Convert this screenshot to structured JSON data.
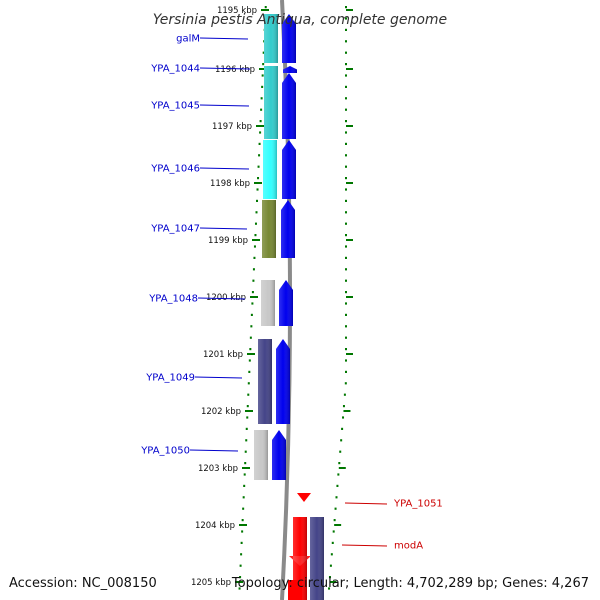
{
  "title": "Yersinia pestis Antiqua, complete genome",
  "footer": {
    "accession": "Accession: NC_008150",
    "topology": "Topology: circular; Length: 4,702,289 bp; Genes: 4,267"
  },
  "colors": {
    "label_blue": "#0000cc",
    "label_red": "#cc0000",
    "tick_green": "#007700",
    "backbone": "#888888"
  },
  "ruler": {
    "unit": "kbp",
    "ticks": [
      {
        "kbp": 1195,
        "label": "1195 kbp"
      },
      {
        "kbp": 1196,
        "label": "1196 kbp"
      },
      {
        "kbp": 1197,
        "label": "1197 kbp"
      },
      {
        "kbp": 1198,
        "label": "1198 kbp"
      },
      {
        "kbp": 1199,
        "label": "1199 kbp"
      },
      {
        "kbp": 1200,
        "label": "1200 kbp"
      },
      {
        "kbp": 1201,
        "label": "1201 kbp"
      },
      {
        "kbp": 1202,
        "label": "1202 kbp"
      },
      {
        "kbp": 1203,
        "label": "1203 kbp"
      },
      {
        "kbp": 1204,
        "label": "1204 kbp"
      },
      {
        "kbp": 1205,
        "label": "1205 kbp"
      }
    ]
  },
  "genes": [
    {
      "name": "galM",
      "strand": "+",
      "cog_color": "#33cccc",
      "label_color": "#0000cc"
    },
    {
      "name": "YPA_1044",
      "strand": "+",
      "cog_color": "#33cccc",
      "label_color": "#0000cc"
    },
    {
      "name": "YPA_1045",
      "strand": "+",
      "cog_color": "#33cccc",
      "label_color": "#0000cc"
    },
    {
      "name": "YPA_1046",
      "strand": "+",
      "cog_color": "#33ffff",
      "label_color": "#0000cc"
    },
    {
      "name": "YPA_1047",
      "strand": "+",
      "cog_color": "#778833",
      "label_color": "#0000cc"
    },
    {
      "name": "YPA_1048",
      "strand": "+",
      "cog_color": "#c8c8c8",
      "label_color": "#0000cc"
    },
    {
      "name": "YPA_1049",
      "strand": "+",
      "cog_color": "#444488",
      "label_color": "#0000cc"
    },
    {
      "name": "YPA_1050",
      "strand": "+",
      "cog_color": "#c8c8c8",
      "label_color": "#0000cc"
    },
    {
      "name": "YPA_1051",
      "strand": "-",
      "cog_color": "#ff0000",
      "label_color": "#cc0000"
    },
    {
      "name": "modA",
      "strand": "-",
      "cog_color": "#444488",
      "label_color": "#cc0000"
    }
  ]
}
